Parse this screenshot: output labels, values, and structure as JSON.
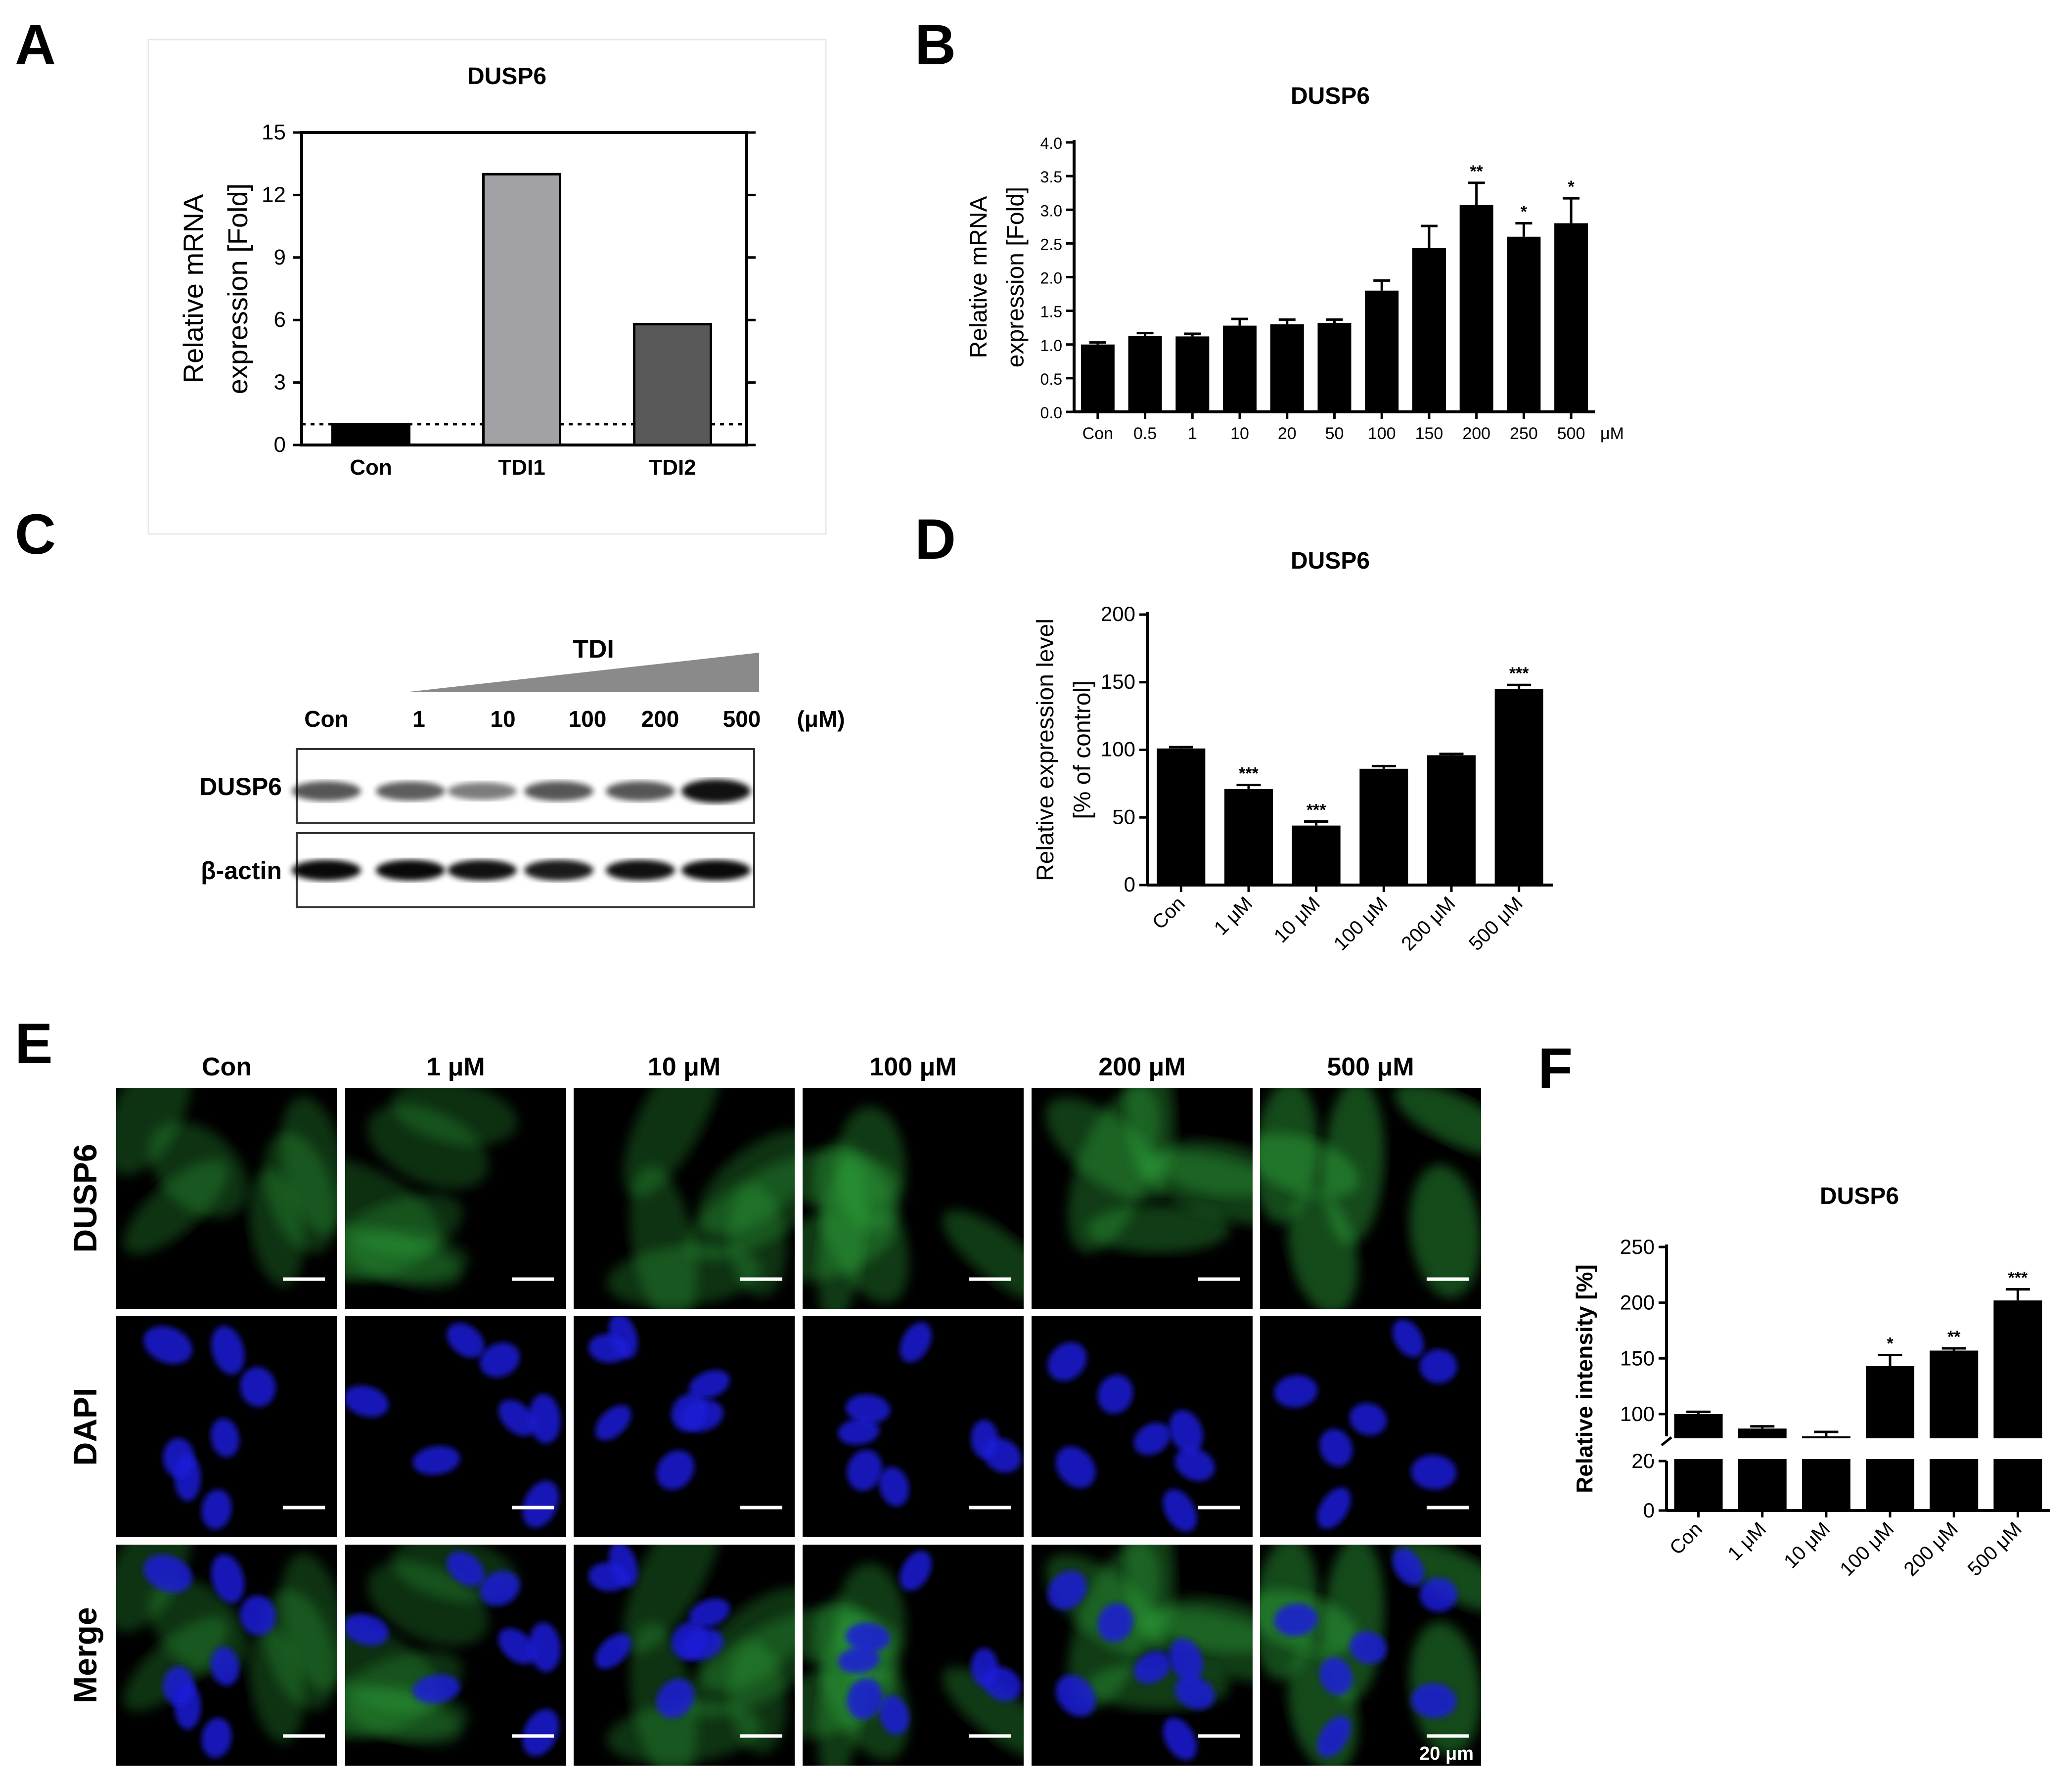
{
  "panel_labels": {
    "a": "A",
    "b": "B",
    "c": "C",
    "d": "D",
    "e": "E",
    "f": "F"
  },
  "colors": {
    "bar_black": "#000000",
    "bar_light": "#a1a1a6",
    "bar_dark": "#595959",
    "dapi": "#1b1ad9",
    "dusp6_green": "#33b040"
  },
  "chart_data": [
    {
      "panel": "A",
      "type": "bar",
      "title": "DUSP6",
      "ylabel": "Relative mRNA\nexpression [Fold]",
      "categories": [
        "Con",
        "TDI1",
        "TDI2"
      ],
      "values": [
        1,
        13,
        5.8
      ],
      "bar_colors": [
        "#000000",
        "#a1a1a6",
        "#595959"
      ],
      "ylim": [
        0,
        15
      ],
      "yticks": [
        "0",
        "3",
        "6",
        "9",
        "12",
        "15"
      ],
      "reference_line": 1
    },
    {
      "panel": "B",
      "type": "bar",
      "title": "DUSP6",
      "ylabel": "Relative mRNA\nexpression [Fold]",
      "categories": [
        "Con",
        "0.5",
        "1",
        "10",
        "20",
        "50",
        "100",
        "150",
        "200",
        "250",
        "500"
      ],
      "unit": "μM",
      "values": [
        1.0,
        1.13,
        1.12,
        1.28,
        1.3,
        1.32,
        1.8,
        2.43,
        3.07,
        2.6,
        2.8
      ],
      "errors": [
        0.03,
        0.04,
        0.04,
        0.1,
        0.07,
        0.05,
        0.15,
        0.33,
        0.33,
        0.2,
        0.37
      ],
      "significance": [
        "",
        "",
        "",
        "",
        "",
        "",
        "",
        "",
        "**",
        "*",
        "*"
      ],
      "ylim": [
        0,
        4.0
      ],
      "yticks": [
        "0.0",
        "0.5",
        "1.0",
        "1.5",
        "2.0",
        "2.5",
        "3.0",
        "3.5",
        "4.0"
      ]
    },
    {
      "panel": "D",
      "type": "bar",
      "title": "DUSP6",
      "ylabel": "Relative expression level\n[% of control]",
      "categories": [
        "Con",
        "1 μM",
        "10 μM",
        "100 μM",
        "200 μM",
        "500 μM"
      ],
      "values": [
        101,
        71,
        44,
        86,
        96,
        145
      ],
      "errors": [
        1,
        3,
        3,
        2,
        1,
        3
      ],
      "significance": [
        "",
        "***",
        "***",
        "",
        "",
        "***"
      ],
      "ylim": [
        0,
        200
      ],
      "yticks": [
        "0",
        "50",
        "100",
        "150",
        "200"
      ]
    },
    {
      "panel": "F",
      "type": "bar",
      "title": "DUSP6",
      "ylabel": "Relative intensity [%]",
      "categories": [
        "Con",
        "1 μM",
        "10 μM",
        "100 μM",
        "200 μM",
        "500 μM"
      ],
      "values": [
        100,
        87,
        78,
        143,
        157,
        202
      ],
      "errors": [
        2,
        2,
        6,
        10,
        2,
        10
      ],
      "significance": [
        "",
        "",
        "",
        "*",
        "**",
        "***"
      ],
      "ylim": [
        0,
        250
      ],
      "axis_break": [
        20,
        80
      ],
      "yticks": [
        "0",
        "20",
        "100",
        "150",
        "200",
        "250"
      ]
    }
  ],
  "western_blot": {
    "treatment": "TDI",
    "lanes": [
      "Con",
      "1",
      "10",
      "100",
      "200",
      "500"
    ],
    "unit": "(μM)",
    "rows": [
      {
        "label": "DUSP6",
        "intensities": [
          0.55,
          0.5,
          0.35,
          0.55,
          0.55,
          0.9
        ]
      },
      {
        "label": "β-actin",
        "intensities": [
          0.95,
          0.95,
          0.9,
          0.85,
          0.9,
          0.95
        ]
      }
    ]
  },
  "microscopy": {
    "columns": [
      "Con",
      "1 μM",
      "10 μM",
      "100 μM",
      "200 μM",
      "500 μM"
    ],
    "rows": [
      "DUSP6",
      "DAPI",
      "Merge"
    ],
    "scale_label": "20 μm"
  }
}
